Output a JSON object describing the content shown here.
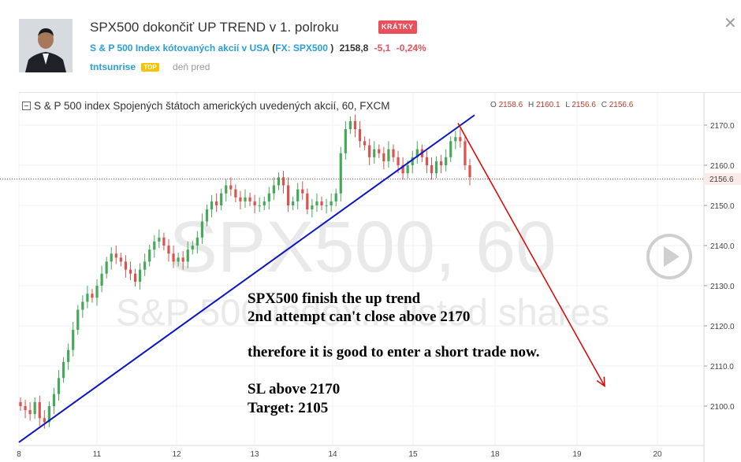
{
  "header": {
    "title": "SPX500 dokončiť UP TREND v 1. polroku",
    "badge": "KRÁTKY",
    "symbol_desc": "S & P 500 Index kótovaných akcií v USA",
    "symbol_ticker": "FX: SPX500",
    "paren_open": "(",
    "paren_close": ")",
    "price": "2158,8",
    "change": "-5,1",
    "change_pct": "-0,24%",
    "author": "tntsunrise",
    "author_badge": "TOP",
    "time_ago": "deň pred"
  },
  "colors": {
    "accent": "#2a9ed8",
    "negative": "#e8505b",
    "candle_up": "#46a85a",
    "candle_down": "#d9534f",
    "trendline": "#0a14c8",
    "arrow": "#e00000"
  },
  "legend": {
    "collapse_icon": "collapse-square-icon",
    "title": "S & P 500 index Spojených štátoch amerických uvedených akcií, 60, FXCM",
    "o_label": "O",
    "o_value": "2158.6",
    "h_label": "H",
    "h_value": "2160.1",
    "l_label": "L",
    "l_value": "2156.6",
    "c_label": "C",
    "c_value": "2156.6"
  },
  "watermark": {
    "line1": "SPX500, 60",
    "line2": "S&P 500 index... listed shares"
  },
  "annotation": {
    "line1": "SPX500 finish the up trend",
    "line2": "2nd attempt can't close above 2170",
    "line3": "therefore it is good to enter a short trade now.",
    "line4": "SL above 2170",
    "line5": "Target:  2105"
  },
  "chart_data": {
    "type": "candlestick",
    "symbol": "SPX500",
    "timeframe": "60",
    "y_ticks": [
      "2100.0",
      "2110.0",
      "2120.0",
      "2130.0",
      "2140.0",
      "2150.0",
      "2160.0",
      "2170.0"
    ],
    "ylim": [
      2091.2,
      2176.8
    ],
    "x_ticks": [
      {
        "label": "8",
        "day": 8
      },
      {
        "label": "11",
        "day": 11
      },
      {
        "label": "12",
        "day": 12
      },
      {
        "label": "13",
        "day": 13
      },
      {
        "label": "14",
        "day": 14
      },
      {
        "label": "15",
        "day": 15
      },
      {
        "label": "18",
        "day": 18
      },
      {
        "label": "19",
        "day": 19
      },
      {
        "label": "20",
        "day": 20
      }
    ],
    "last_price_label": "2156.6",
    "last_price": 2156.6,
    "closes": [
      2100,
      2099,
      2098,
      2101,
      2097,
      2096,
      2100,
      2103,
      2107,
      2111,
      2114,
      2119,
      2124,
      2126,
      2128,
      2127,
      2130,
      2133,
      2136,
      2138,
      2137,
      2136,
      2134,
      2133,
      2131,
      2134,
      2136,
      2139,
      2141,
      2142,
      2140,
      2138,
      2136,
      2137,
      2136,
      2139,
      2140,
      2142,
      2146,
      2149,
      2151,
      2150,
      2153,
      2155,
      2154,
      2152,
      2151,
      2152,
      2151,
      2150,
      2150,
      2151,
      2153,
      2155,
      2157,
      2155,
      2150,
      2151,
      2154,
      2153,
      2149,
      2150,
      2151,
      2150,
      2150,
      2151,
      2153,
      2163,
      2169,
      2171,
      2169,
      2166,
      2165,
      2162,
      2164,
      2163,
      2161,
      2164,
      2162,
      2160,
      2158,
      2160,
      2162,
      2164,
      2162,
      2160,
      2158,
      2161,
      2160,
      2162,
      2166,
      2167,
      2166,
      2160,
      2157
    ],
    "trendline": {
      "start_value": 2091,
      "end_value": 2172.5,
      "label": ""
    },
    "arrow": {
      "from_value": 2170.5,
      "to_value": 2105,
      "label": ""
    }
  }
}
